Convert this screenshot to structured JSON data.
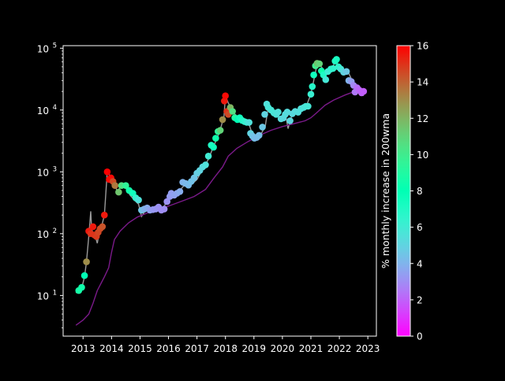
{
  "chart_data": {
    "type": "scatter",
    "title": "",
    "xlabel": "",
    "ylabel": "",
    "yscale": "log",
    "xlim": [
      2012.3,
      2023.3
    ],
    "ylim": [
      2.2,
      110000
    ],
    "grid": false,
    "background": "#000000",
    "x_ticks": [
      2013,
      2014,
      2015,
      2016,
      2017,
      2018,
      2019,
      2020,
      2021,
      2022,
      2023
    ],
    "x_tick_labels": [
      "2013",
      "2014",
      "2015",
      "2016",
      "2017",
      "2018",
      "2019",
      "2020",
      "2021",
      "2022",
      "2023"
    ],
    "y_ticks": [
      10,
      100,
      1000,
      10000,
      100000
    ],
    "y_tick_labels": [
      {
        "base": "10",
        "exp": "1"
      },
      {
        "base": "10",
        "exp": "2"
      },
      {
        "base": "10",
        "exp": "3"
      },
      {
        "base": "10",
        "exp": "4"
      },
      {
        "base": "10",
        "exp": "5"
      }
    ],
    "colorbar": {
      "label": "% monthly increase in 200wma",
      "min": 0,
      "max": 16,
      "ticks": [
        0,
        2,
        4,
        6,
        8,
        10,
        12,
        14,
        16
      ],
      "colormap": "rainbow"
    },
    "series": [
      {
        "kind": "line",
        "color": "#9a9a9a",
        "x": [
          2012.75,
          2012.85,
          2012.95,
          2013.05,
          2013.12,
          2013.2,
          2013.27,
          2013.3,
          2013.35,
          2013.42,
          2013.5,
          2013.58,
          2013.65,
          2013.75,
          2013.85,
          2013.92,
          2014.0,
          2014.1,
          2014.2,
          2014.35,
          2014.5,
          2014.65,
          2014.8,
          2014.95,
          2015.05,
          2015.2,
          2015.4,
          2015.6,
          2015.8,
          2016.0,
          2016.2,
          2016.4,
          2016.6,
          2016.8,
          2017.0,
          2017.2,
          2017.4,
          2017.6,
          2017.8,
          2017.95,
          2018.0,
          2018.1,
          2018.3,
          2018.5,
          2018.7,
          2018.85,
          2018.95,
          2019.05,
          2019.2,
          2019.4,
          2019.5,
          2019.65,
          2019.8,
          2019.95,
          2020.1,
          2020.2,
          2020.3,
          2020.5,
          2020.7,
          2020.85,
          2021.0,
          2021.1,
          2021.2,
          2021.3,
          2021.4,
          2021.5,
          2021.6,
          2021.75,
          2021.85,
          2021.95,
          2022.1,
          2022.3,
          2022.45,
          2022.6,
          2022.75,
          2022.85
        ],
        "y": [
          11,
          12,
          13,
          20,
          35,
          90,
          230,
          120,
          100,
          95,
          70,
          110,
          130,
          200,
          1000,
          900,
          800,
          650,
          480,
          600,
          550,
          420,
          350,
          300,
          190,
          240,
          240,
          240,
          250,
          380,
          450,
          500,
          650,
          620,
          750,
          1100,
          1600,
          2700,
          4500,
          8000,
          17000,
          13000,
          9000,
          7000,
          6500,
          5500,
          4000,
          3400,
          3700,
          5500,
          11000,
          10000,
          8500,
          7200,
          9000,
          5000,
          7500,
          9500,
          10500,
          12000,
          18000,
          30000,
          50000,
          55000,
          48000,
          35000,
          40000,
          45000,
          65000,
          55000,
          42000,
          42000,
          30000,
          24000,
          20000,
          17000
        ]
      },
      {
        "kind": "line",
        "color": "#7b1a8a",
        "x": [
          2012.75,
          2013.0,
          2013.2,
          2013.35,
          2013.5,
          2013.75,
          2013.9,
          2014.0,
          2014.1,
          2014.3,
          2014.6,
          2014.9,
          2015.3,
          2015.7,
          2016.1,
          2016.5,
          2016.9,
          2017.3,
          2017.6,
          2017.9,
          2018.1,
          2018.4,
          2018.8,
          2019.2,
          2019.6,
          2020.0,
          2020.4,
          2020.8,
          2021.0,
          2021.2,
          2021.5,
          2021.8,
          2022.2,
          2022.6,
          2022.85
        ],
        "y": [
          3.3,
          4.0,
          5.0,
          7.5,
          12,
          20,
          28,
          50,
          80,
          110,
          150,
          185,
          220,
          250,
          290,
          340,
          400,
          520,
          800,
          1200,
          1800,
          2400,
          3100,
          3900,
          4700,
          5400,
          6000,
          6700,
          7500,
          9000,
          12000,
          14500,
          17500,
          20500,
          22500
        ]
      },
      {
        "kind": "scatter",
        "name": "",
        "points": [
          [
            2012.85,
            12,
            8.7
          ],
          [
            2012.95,
            13.5,
            8.5
          ],
          [
            2013.05,
            21,
            8.0
          ],
          [
            2013.12,
            35,
            13.0
          ],
          [
            2013.2,
            110,
            15.5
          ],
          [
            2013.27,
            100,
            15.0
          ],
          [
            2013.35,
            130,
            15.5
          ],
          [
            2013.4,
            95,
            15.0
          ],
          [
            2013.47,
            90,
            14.8
          ],
          [
            2013.53,
            105,
            14.6
          ],
          [
            2013.6,
            120,
            14.5
          ],
          [
            2013.68,
            130,
            14.3
          ],
          [
            2013.75,
            200,
            15.5
          ],
          [
            2013.85,
            1000,
            16.0
          ],
          [
            2013.92,
            750,
            15.8
          ],
          [
            2013.98,
            800,
            15.8
          ],
          [
            2014.05,
            700,
            14.5
          ],
          [
            2014.12,
            600,
            13.5
          ],
          [
            2014.25,
            470,
            11.5
          ],
          [
            2014.35,
            600,
            10.5
          ],
          [
            2014.5,
            600,
            9.5
          ],
          [
            2014.62,
            500,
            8.5
          ],
          [
            2014.75,
            450,
            7.5
          ],
          [
            2014.85,
            380,
            6.5
          ],
          [
            2014.95,
            350,
            5.5
          ],
          [
            2015.05,
            240,
            4.5
          ],
          [
            2015.15,
            250,
            4.0
          ],
          [
            2015.25,
            260,
            3.8
          ],
          [
            2015.35,
            240,
            3.5
          ],
          [
            2015.45,
            245,
            3.3
          ],
          [
            2015.55,
            250,
            3.2
          ],
          [
            2015.65,
            270,
            3.1
          ],
          [
            2015.75,
            240,
            3.0
          ],
          [
            2015.85,
            250,
            3.0
          ],
          [
            2015.95,
            330,
            3.1
          ],
          [
            2016.05,
            400,
            3.3
          ],
          [
            2016.1,
            450,
            3.4
          ],
          [
            2016.2,
            420,
            3.5
          ],
          [
            2016.3,
            450,
            3.6
          ],
          [
            2016.4,
            480,
            3.8
          ],
          [
            2016.5,
            680,
            4.0
          ],
          [
            2016.6,
            650,
            4.1
          ],
          [
            2016.7,
            610,
            4.2
          ],
          [
            2016.8,
            700,
            4.4
          ],
          [
            2016.9,
            800,
            4.5
          ],
          [
            2017.0,
            950,
            4.8
          ],
          [
            2017.1,
            1050,
            5.0
          ],
          [
            2017.2,
            1200,
            5.2
          ],
          [
            2017.3,
            1300,
            5.5
          ],
          [
            2017.4,
            1800,
            6.0
          ],
          [
            2017.5,
            2700,
            7.0
          ],
          [
            2017.58,
            2500,
            7.5
          ],
          [
            2017.66,
            3500,
            8.5
          ],
          [
            2017.74,
            4500,
            9.5
          ],
          [
            2017.82,
            4700,
            11.0
          ],
          [
            2017.9,
            7000,
            13.0
          ],
          [
            2017.96,
            14000,
            15.5
          ],
          [
            2018.0,
            17000,
            15.8
          ],
          [
            2018.05,
            9500,
            15.0
          ],
          [
            2018.1,
            8500,
            14.5
          ],
          [
            2018.17,
            11000,
            12.0
          ],
          [
            2018.25,
            9500,
            10.5
          ],
          [
            2018.33,
            7500,
            9.0
          ],
          [
            2018.42,
            7000,
            8.0
          ],
          [
            2018.5,
            7500,
            7.5
          ],
          [
            2018.58,
            6800,
            7.0
          ],
          [
            2018.67,
            6500,
            6.5
          ],
          [
            2018.75,
            6300,
            6.0
          ],
          [
            2018.83,
            6300,
            5.5
          ],
          [
            2018.88,
            4200,
            5.0
          ],
          [
            2018.95,
            3800,
            4.5
          ],
          [
            2019.02,
            3500,
            4.3
          ],
          [
            2019.1,
            3600,
            4.2
          ],
          [
            2019.18,
            3900,
            4.3
          ],
          [
            2019.3,
            5300,
            4.6
          ],
          [
            2019.38,
            8500,
            5.0
          ],
          [
            2019.45,
            12500,
            5.5
          ],
          [
            2019.5,
            11000,
            5.7
          ],
          [
            2019.6,
            10000,
            5.8
          ],
          [
            2019.7,
            9000,
            5.7
          ],
          [
            2019.78,
            8500,
            5.6
          ],
          [
            2019.85,
            9300,
            5.5
          ],
          [
            2019.95,
            7200,
            5.3
          ],
          [
            2020.03,
            7400,
            5.2
          ],
          [
            2020.1,
            8500,
            5.3
          ],
          [
            2020.17,
            9300,
            5.3
          ],
          [
            2020.27,
            6700,
            5.1
          ],
          [
            2020.35,
            8700,
            5.2
          ],
          [
            2020.45,
            9500,
            5.3
          ],
          [
            2020.55,
            9200,
            5.4
          ],
          [
            2020.65,
            10500,
            5.5
          ],
          [
            2020.75,
            11000,
            5.6
          ],
          [
            2020.82,
            11500,
            5.7
          ],
          [
            2020.9,
            11500,
            5.8
          ],
          [
            2021.0,
            18000,
            6.2
          ],
          [
            2021.05,
            24000,
            6.8
          ],
          [
            2021.1,
            37000,
            7.5
          ],
          [
            2021.16,
            52000,
            10.0
          ],
          [
            2021.22,
            57000,
            11.5
          ],
          [
            2021.3,
            56000,
            11.0
          ],
          [
            2021.37,
            43000,
            8.5
          ],
          [
            2021.44,
            37000,
            7.0
          ],
          [
            2021.52,
            31000,
            5.8
          ],
          [
            2021.6,
            42000,
            6.0
          ],
          [
            2021.7,
            46000,
            6.3
          ],
          [
            2021.78,
            47000,
            6.5
          ],
          [
            2021.85,
            62000,
            7.0
          ],
          [
            2021.9,
            66000,
            7.2
          ],
          [
            2021.97,
            50000,
            6.5
          ],
          [
            2022.05,
            46000,
            5.8
          ],
          [
            2022.15,
            41000,
            5.0
          ],
          [
            2022.25,
            42000,
            4.6
          ],
          [
            2022.33,
            30000,
            4.0
          ],
          [
            2022.42,
            29000,
            3.4
          ],
          [
            2022.5,
            25000,
            2.9
          ],
          [
            2022.55,
            19500,
            2.5
          ],
          [
            2022.62,
            23000,
            2.3
          ],
          [
            2022.7,
            21000,
            2.1
          ],
          [
            2022.78,
            19000,
            2.0
          ],
          [
            2022.85,
            20000,
            1.9
          ]
        ]
      }
    ]
  }
}
